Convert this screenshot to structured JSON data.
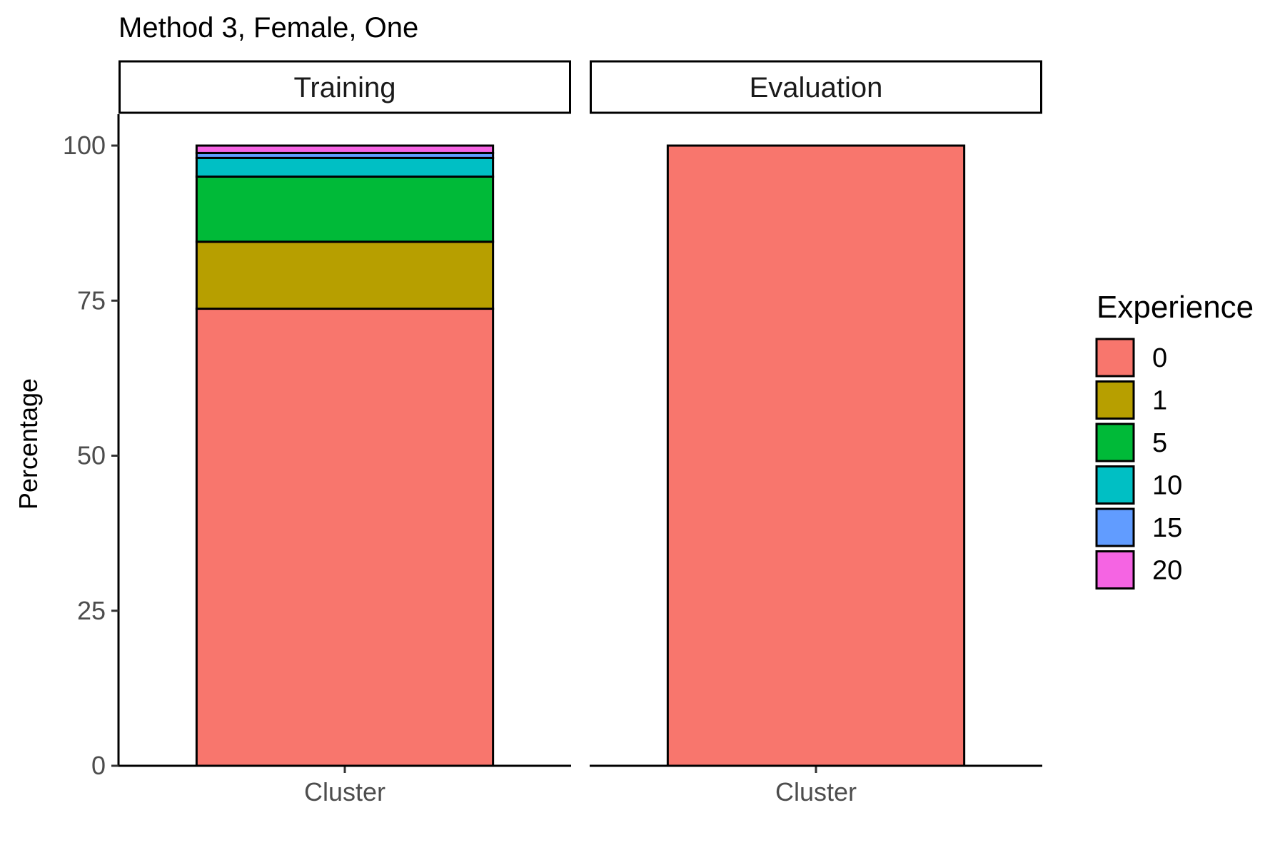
{
  "chart_data": {
    "type": "bar",
    "stacked": true,
    "title": "Method 3, Female, One",
    "xlabel": "",
    "ylabel": "Percentage",
    "ylim": [
      0,
      100
    ],
    "yticks": [
      0,
      25,
      50,
      75,
      100
    ],
    "legend": {
      "title": "Experience",
      "placement": "right",
      "levels": [
        "0",
        "1",
        "5",
        "10",
        "15",
        "20"
      ],
      "colors": [
        "#F8766D",
        "#B79F00",
        "#00BA38",
        "#00BFC4",
        "#619CFF",
        "#F564E3"
      ]
    },
    "panels": [
      {
        "name": "Training",
        "categories": [
          "Cluster"
        ],
        "series": [
          {
            "name": "0",
            "values": [
              73.7
            ]
          },
          {
            "name": "1",
            "values": [
              10.8
            ]
          },
          {
            "name": "5",
            "values": [
              10.5
            ]
          },
          {
            "name": "10",
            "values": [
              3.0
            ]
          },
          {
            "name": "15",
            "values": [
              0.8
            ]
          },
          {
            "name": "20",
            "values": [
              1.2
            ]
          }
        ]
      },
      {
        "name": "Evaluation",
        "categories": [
          "Cluster"
        ],
        "series": [
          {
            "name": "0",
            "values": [
              100
            ]
          },
          {
            "name": "1",
            "values": [
              0
            ]
          },
          {
            "name": "5",
            "values": [
              0
            ]
          },
          {
            "name": "10",
            "values": [
              0
            ]
          },
          {
            "name": "15",
            "values": [
              0
            ]
          },
          {
            "name": "20",
            "values": [
              0
            ]
          }
        ]
      }
    ],
    "grid": false
  }
}
